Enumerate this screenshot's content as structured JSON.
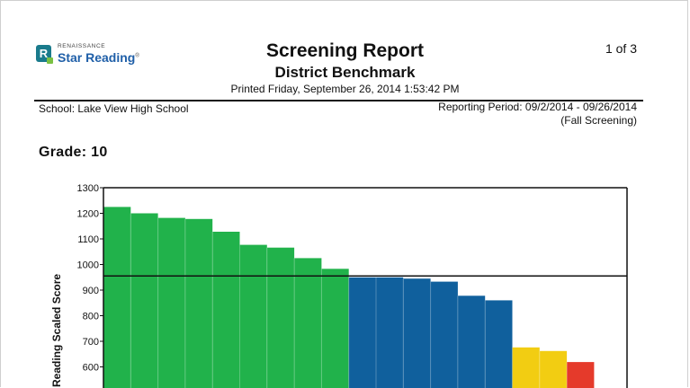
{
  "header": {
    "logo_small": "RENAISSANCE",
    "logo_brand": "Star Reading",
    "logo_mark": "R",
    "title": "Screening Report",
    "subtitle": "District Benchmark",
    "printed": "Printed Friday, September 26, 2014 1:53:42 PM",
    "page_indicator": "1 of 3"
  },
  "info": {
    "school": "School: Lake View High School",
    "reporting_period": "Reporting Period: 09/2/2014 - 09/26/2014",
    "screening_window": "(Fall Screening)"
  },
  "grade_label": "Grade: 10",
  "colors": {
    "green": "#21b24b",
    "blue": "#10609d",
    "yellow": "#f2cd12",
    "red": "#e53a2b",
    "brand_blue": "#1f5fa8",
    "brand_teal": "#1a7b8c"
  },
  "chart_data": {
    "type": "bar",
    "ylabel": "Reading Scaled Score",
    "yticks": [
      600,
      700,
      800,
      900,
      1000,
      1100,
      1200,
      1300
    ],
    "ylim": [
      520,
      1300
    ],
    "benchmark": 955,
    "grid": false,
    "values": [
      {
        "value": 1225,
        "group": "green"
      },
      {
        "value": 1200,
        "group": "green"
      },
      {
        "value": 1182,
        "group": "green"
      },
      {
        "value": 1178,
        "group": "green"
      },
      {
        "value": 1128,
        "group": "green"
      },
      {
        "value": 1077,
        "group": "green"
      },
      {
        "value": 1066,
        "group": "green"
      },
      {
        "value": 1025,
        "group": "green"
      },
      {
        "value": 983,
        "group": "green"
      },
      {
        "value": 950,
        "group": "blue"
      },
      {
        "value": 950,
        "group": "blue"
      },
      {
        "value": 945,
        "group": "blue"
      },
      {
        "value": 933,
        "group": "blue"
      },
      {
        "value": 878,
        "group": "blue"
      },
      {
        "value": 860,
        "group": "blue"
      },
      {
        "value": 676,
        "group": "yellow"
      },
      {
        "value": 662,
        "group": "yellow"
      },
      {
        "value": 619,
        "group": "red"
      }
    ]
  }
}
